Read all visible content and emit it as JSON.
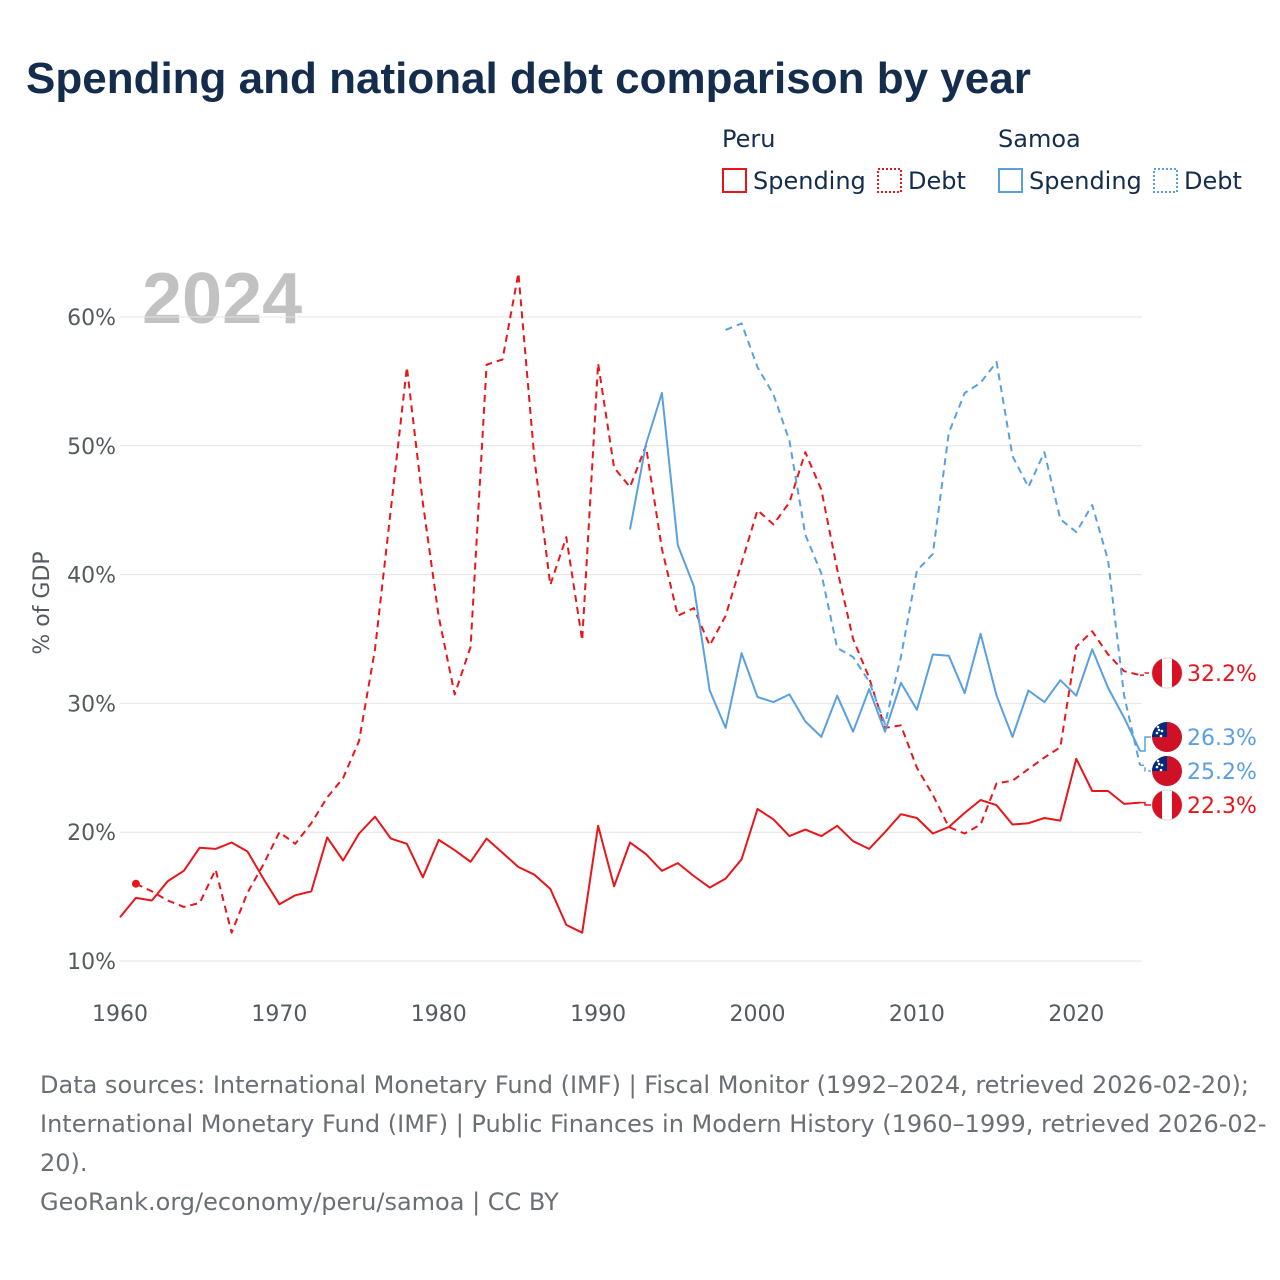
{
  "title": "Spending and national debt comparison by year",
  "year_watermark": "2024",
  "legend": {
    "groups": [
      {
        "country": "Peru",
        "spending_label": "Spending",
        "debt_label": "Debt",
        "color": "#e8161b"
      },
      {
        "country": "Samoa",
        "spending_label": "Spending",
        "debt_label": "Debt",
        "color": "#5aa0e0"
      }
    ]
  },
  "footer": {
    "line1": "Data sources: International Monetary Fund (IMF) | Fiscal Monitor (1992–2024, retrieved 2026-02-20);",
    "line2": "International Monetary Fund (IMF) | Public Finances in Modern History (1960–1999, retrieved 2026-02-",
    "line3": "20).",
    "line4": "GeoRank.org/economy/peru/samoa | CC BY"
  },
  "chart_data": {
    "type": "line",
    "ylabel": "% of GDP",
    "xlabel": "",
    "xlim": [
      1960,
      2024
    ],
    "ylim": [
      10,
      65
    ],
    "x_ticks": [
      1960,
      1970,
      1980,
      1990,
      2000,
      2010,
      2020
    ],
    "x_tick_labels": [
      "1960",
      "1970",
      "1980",
      "1990",
      "2000",
      "2010",
      "2020"
    ],
    "y_ticks": [
      10,
      20,
      30,
      40,
      50,
      60
    ],
    "y_tick_labels": [
      "10%",
      "20%",
      "30%",
      "40%",
      "50%",
      "60%"
    ],
    "grid": true,
    "series": [
      {
        "name": "Peru Spending",
        "country": "Peru",
        "kind": "spending",
        "color": "#e8161b",
        "dashed": false,
        "end_label": "22.3%",
        "flag": "peru",
        "x": [
          1960,
          1961,
          1962,
          1963,
          1964,
          1965,
          1966,
          1967,
          1968,
          1969,
          1970,
          1971,
          1972,
          1973,
          1974,
          1975,
          1976,
          1977,
          1978,
          1979,
          1980,
          1981,
          1982,
          1983,
          1984,
          1985,
          1986,
          1987,
          1988,
          1989,
          1990,
          1991,
          1992,
          1993,
          1994,
          1995,
          1996,
          1997,
          1998,
          1999,
          2000,
          2001,
          2002,
          2003,
          2004,
          2005,
          2006,
          2007,
          2008,
          2009,
          2010,
          2011,
          2012,
          2013,
          2014,
          2015,
          2016,
          2017,
          2018,
          2019,
          2020,
          2021,
          2022,
          2023,
          2024
        ],
        "values": [
          13.4,
          14.9,
          14.7,
          16.2,
          17.0,
          18.8,
          18.7,
          19.2,
          18.5,
          16.4,
          14.4,
          15.1,
          15.4,
          19.6,
          17.8,
          19.9,
          21.2,
          19.5,
          19.1,
          16.5,
          19.4,
          18.6,
          17.7,
          19.5,
          18.4,
          17.3,
          16.7,
          15.6,
          12.8,
          12.2,
          20.5,
          15.8,
          19.2,
          18.3,
          17.0,
          17.6,
          16.6,
          15.7,
          16.4,
          17.9,
          21.8,
          21.0,
          19.7,
          20.2,
          19.7,
          20.5,
          19.3,
          18.7,
          20.0,
          21.4,
          21.1,
          19.9,
          20.4,
          21.5,
          22.5,
          22.1,
          20.6,
          20.7,
          21.1,
          20.9,
          25.7,
          23.2,
          23.2,
          22.2,
          22.3
        ]
      },
      {
        "name": "Peru Debt",
        "country": "Peru",
        "kind": "debt",
        "color": "#e8161b",
        "dashed": true,
        "end_label": "32.2%",
        "flag": "peru",
        "x": [
          1961,
          1962,
          1963,
          1964,
          1965,
          1966,
          1967,
          1968,
          1969,
          1970,
          1971,
          1972,
          1973,
          1974,
          1975,
          1976,
          1977,
          1978,
          1979,
          1980,
          1981,
          1982,
          1983,
          1984,
          1985,
          1986,
          1987,
          1988,
          1989,
          1990,
          1991,
          1992,
          1993,
          1994,
          1995,
          1996,
          1997,
          1998,
          1999,
          2000,
          2001,
          2002,
          2003,
          2004,
          2005,
          2006,
          2007,
          2008,
          2009,
          2010,
          2011,
          2012,
          2013,
          2014,
          2015,
          2016,
          2017,
          2018,
          2019,
          2020,
          2021,
          2022,
          2023,
          2024
        ],
        "values": [
          16.0,
          15.4,
          14.7,
          14.2,
          14.5,
          17.1,
          12.2,
          15.3,
          17.5,
          20.0,
          19.1,
          20.7,
          22.7,
          24.2,
          27.1,
          34.2,
          45.1,
          56.1,
          45.6,
          36.7,
          30.7,
          34.4,
          56.3,
          56.7,
          63.4,
          49.0,
          39.2,
          42.9,
          34.9,
          56.4,
          48.3,
          46.8,
          50.0,
          42.0,
          36.8,
          37.4,
          34.5,
          36.8,
          40.9,
          45.0,
          43.9,
          45.6,
          49.5,
          46.6,
          40.4,
          35.0,
          32.0,
          28.1,
          28.3,
          25.0,
          22.9,
          20.4,
          19.9,
          20.6,
          23.8,
          24.0,
          24.9,
          25.8,
          26.6,
          34.4,
          35.6,
          33.8,
          32.5,
          32.2
        ]
      },
      {
        "name": "Samoa Spending",
        "country": "Samoa",
        "kind": "spending",
        "color": "#5aa0e0",
        "dashed": false,
        "end_label": "26.3%",
        "flag": "samoa",
        "x": [
          1992,
          1993,
          1994,
          1995,
          1996,
          1997,
          1998,
          1999,
          2000,
          2001,
          2002,
          2003,
          2004,
          2005,
          2006,
          2007,
          2008,
          2009,
          2010,
          2011,
          2012,
          2013,
          2014,
          2015,
          2016,
          2017,
          2018,
          2019,
          2020,
          2021,
          2022,
          2023,
          2024
        ],
        "values": [
          43.5,
          50.1,
          54.1,
          42.3,
          39.1,
          31.0,
          28.1,
          33.9,
          30.5,
          30.1,
          30.7,
          28.6,
          27.4,
          30.6,
          27.8,
          31.1,
          27.8,
          31.6,
          29.5,
          33.8,
          33.7,
          30.8,
          35.4,
          30.6,
          27.4,
          31.0,
          30.1,
          31.8,
          30.6,
          34.2,
          31.2,
          28.9,
          26.3
        ]
      },
      {
        "name": "Samoa Debt",
        "country": "Samoa",
        "kind": "debt",
        "color": "#5aa0e0",
        "dashed": true,
        "end_label": "25.2%",
        "flag": "samoa",
        "x": [
          1998,
          1999,
          2000,
          2001,
          2002,
          2003,
          2004,
          2005,
          2006,
          2007,
          2008,
          2009,
          2010,
          2011,
          2012,
          2013,
          2014,
          2015,
          2016,
          2017,
          2018,
          2019,
          2020,
          2021,
          2022,
          2023,
          2024
        ],
        "values": [
          59.0,
          59.5,
          56.1,
          54.0,
          50.4,
          43.1,
          40.1,
          34.3,
          33.6,
          31.7,
          28.4,
          33.6,
          40.3,
          41.6,
          51.0,
          54.1,
          54.9,
          56.5,
          49.2,
          46.8,
          49.5,
          44.3,
          43.3,
          45.4,
          41.1,
          30.6,
          25.2
        ]
      }
    ]
  }
}
